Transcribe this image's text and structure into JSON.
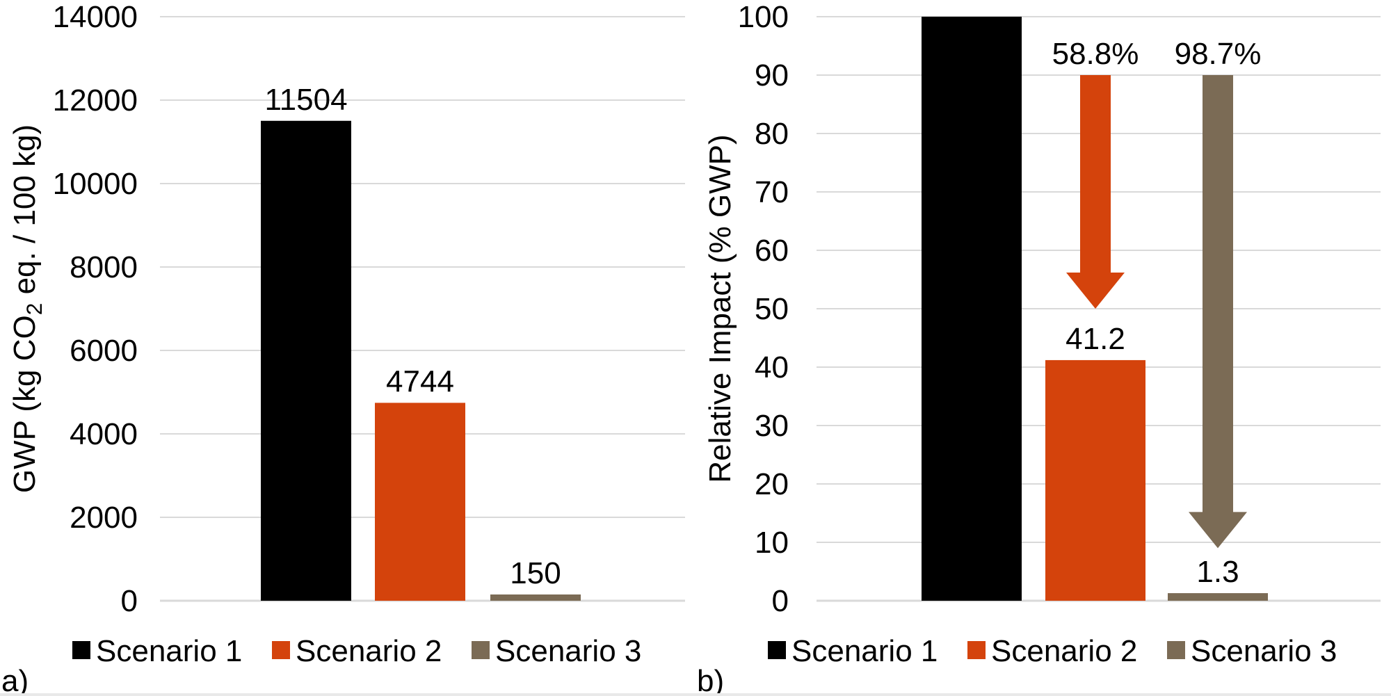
{
  "figure": {
    "background_color": "#FFFFFF",
    "gridline_color": "#D9D9D9",
    "text_color": "#000000",
    "panel_tags": [
      "a)",
      "b)"
    ]
  },
  "legend": {
    "position": "bottom",
    "items": [
      {
        "label": "Scenario 1",
        "color": "#000000"
      },
      {
        "label": "Scenario 2",
        "color": "#D4430C"
      },
      {
        "label": "Scenario 3",
        "color": "#7B6B55"
      }
    ]
  },
  "chart_data": [
    {
      "id": "a",
      "tag": "a)",
      "type": "bar",
      "title": "",
      "xlabel": "",
      "ylabel": "GWP (kg CO2 eq. / 100 kg)",
      "ylabel_segments": [
        {
          "text": "GWP (kg CO",
          "sub": false
        },
        {
          "text": "2",
          "sub": true
        },
        {
          "text": " eq. / 100 kg)",
          "sub": false
        }
      ],
      "categories": [
        "Scenario 1",
        "Scenario 2",
        "Scenario 3"
      ],
      "values": [
        11504,
        4744,
        150
      ],
      "value_labels": [
        "11504",
        "4744",
        "150"
      ],
      "colors": [
        "#000000",
        "#D4430C",
        "#7B6B55"
      ],
      "ylim": [
        0,
        14000
      ],
      "ytick_step": 2000,
      "grid": true,
      "legend_position": "bottom",
      "annotations": []
    },
    {
      "id": "b",
      "tag": "b)",
      "type": "bar",
      "title": "",
      "xlabel": "",
      "ylabel": "Relative Impact (% GWP)",
      "ylabel_segments": [
        {
          "text": "Relative Impact (% GWP)",
          "sub": false
        }
      ],
      "categories": [
        "Scenario 1",
        "Scenario 2",
        "Scenario 3"
      ],
      "values": [
        100,
        41.2,
        1.3
      ],
      "value_labels": [
        null,
        "41.2",
        "1.3"
      ],
      "colors": [
        "#000000",
        "#D4430C",
        "#7B6B55"
      ],
      "ylim": [
        0,
        100
      ],
      "ytick_step": 10,
      "grid": true,
      "legend_position": "bottom",
      "annotations": [
        {
          "label": "58.8%",
          "bar_index": 1,
          "direction": "down",
          "from": 90,
          "to": 50,
          "color": "#D4430C"
        },
        {
          "label": "98.7%",
          "bar_index": 2,
          "direction": "down",
          "from": 90,
          "to": 9,
          "color": "#7B6B55"
        }
      ]
    }
  ]
}
